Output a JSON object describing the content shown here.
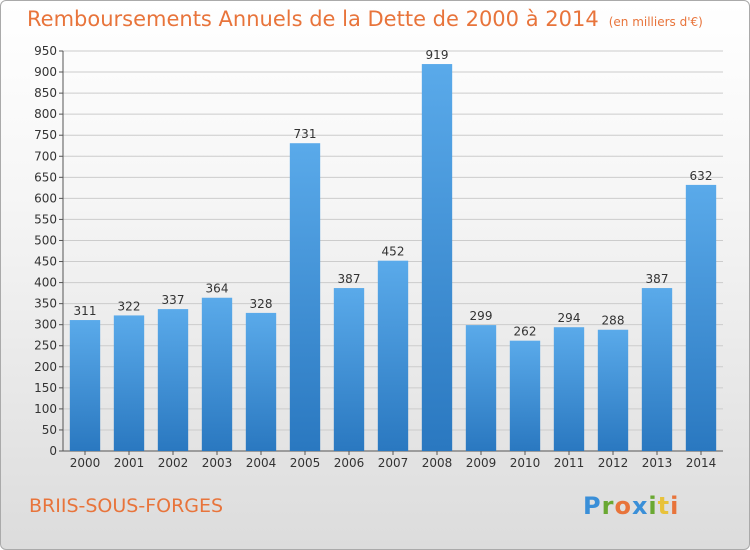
{
  "header": {
    "title": "Remboursements Annuels de la Dette de 2000 à 2014",
    "unit": "(en milliers d'€)"
  },
  "footer": {
    "location": "BRIIS-SOUS-FORGES",
    "logo": {
      "letters": [
        "P",
        "r",
        "o",
        "x",
        "i",
        "t",
        "i"
      ],
      "colors": [
        "#3a8fd8",
        "#6aa832",
        "#e8743b",
        "#3a8fd8",
        "#6aa832",
        "#e8c23b",
        "#e8743b"
      ]
    }
  },
  "colors": {
    "title": "#e8743b",
    "bar_light": "#5aaaea",
    "bar_dark": "#2a78c0",
    "grid": "#cccccc"
  },
  "chart_data": {
    "type": "bar",
    "title": "Remboursements Annuels de la Dette de 2000 à 2014",
    "subtitle": "(en milliers d'€)",
    "categories": [
      "2000",
      "2001",
      "2002",
      "2003",
      "2004",
      "2005",
      "2006",
      "2007",
      "2008",
      "2009",
      "2010",
      "2011",
      "2012",
      "2013",
      "2014"
    ],
    "values": [
      311,
      322,
      337,
      364,
      328,
      731,
      387,
      452,
      919,
      299,
      262,
      294,
      288,
      387,
      632
    ],
    "xlabel": "",
    "ylabel": "",
    "ylim": [
      0,
      950
    ],
    "ytick_step": 50,
    "grid": true,
    "data_labels": true
  }
}
